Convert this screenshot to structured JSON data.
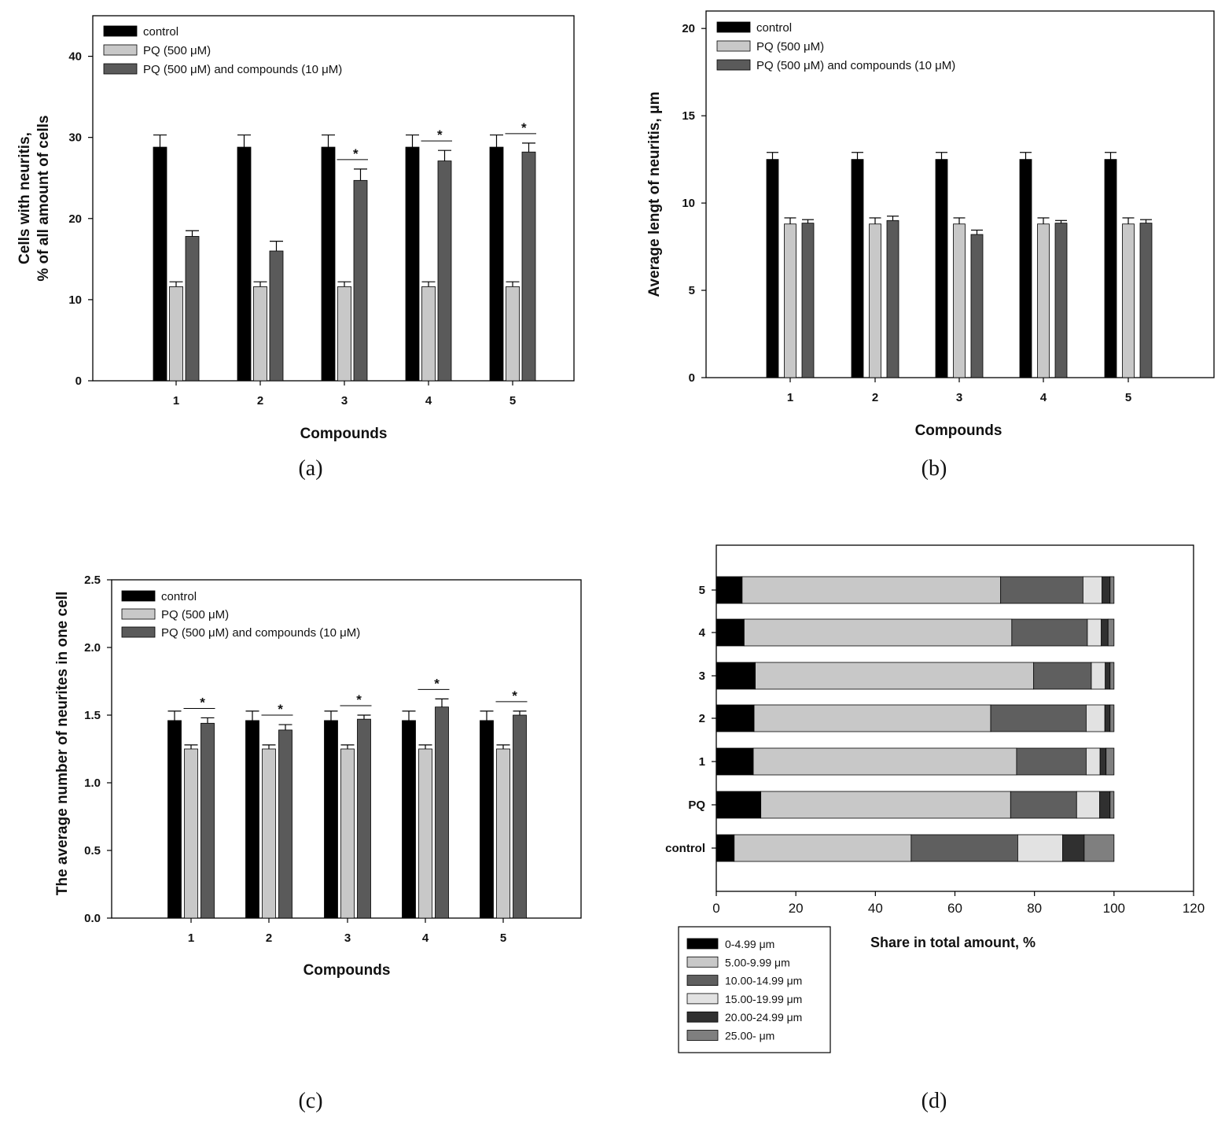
{
  "colors": {
    "control": "#000000",
    "pq": "#c8c8c8",
    "pq_compounds": "#5a5a5a",
    "ranges": [
      "#000000",
      "#c8c8c8",
      "#5f5f5f",
      "#e2e2e2",
      "#303030",
      "#7f7f7f"
    ]
  },
  "legend_bars": [
    "control",
    "PQ (500 μM)",
    "PQ (500 μM) and compounds (10 μM)"
  ],
  "chart_data": [
    {
      "id": "a",
      "type": "bar",
      "caption": "(a)",
      "xlabel": "Compounds",
      "ylabel": [
        "Cells with neuritis,",
        "% of all amount of cells"
      ],
      "categories": [
        "1",
        "2",
        "3",
        "4",
        "5"
      ],
      "ylim": [
        0,
        45
      ],
      "yticks": [
        "0",
        "10",
        "20",
        "30",
        "40"
      ],
      "series": [
        {
          "name": "control",
          "values": [
            28.8,
            28.8,
            28.8,
            28.8,
            28.8
          ],
          "errors": [
            1.5,
            1.5,
            1.5,
            1.5,
            1.5
          ]
        },
        {
          "name": "PQ (500 μM)",
          "values": [
            11.6,
            11.6,
            11.6,
            11.6,
            11.6
          ],
          "errors": [
            0.6,
            0.6,
            0.6,
            0.6,
            0.6
          ]
        },
        {
          "name": "PQ (500 μM) and compounds (10 μM)",
          "values": [
            17.8,
            16.0,
            24.7,
            27.1,
            28.2
          ],
          "errors": [
            0.7,
            1.2,
            1.4,
            1.3,
            1.1
          ]
        }
      ],
      "significance": [
        "",
        "",
        "*",
        "*",
        "*"
      ]
    },
    {
      "id": "b",
      "type": "bar",
      "caption": "(b)",
      "xlabel": "Compounds",
      "ylabel": [
        "Average lengt of neuritis, μm"
      ],
      "categories": [
        "1",
        "2",
        "3",
        "4",
        "5"
      ],
      "ylim": [
        0,
        21
      ],
      "yticks": [
        "0",
        "5",
        "10",
        "15",
        "20"
      ],
      "series": [
        {
          "name": "control",
          "values": [
            12.5,
            12.5,
            12.5,
            12.5,
            12.5
          ],
          "errors": [
            0.4,
            0.4,
            0.4,
            0.4,
            0.4
          ]
        },
        {
          "name": "PQ (500 μM)",
          "values": [
            8.8,
            8.8,
            8.8,
            8.8,
            8.8
          ],
          "errors": [
            0.35,
            0.35,
            0.35,
            0.35,
            0.35
          ]
        },
        {
          "name": "PQ (500 μM) and compounds (10 μM)",
          "values": [
            8.85,
            9.0,
            8.2,
            8.85,
            8.85
          ],
          "errors": [
            0.2,
            0.25,
            0.25,
            0.15,
            0.2
          ]
        }
      ],
      "significance": [
        "",
        "",
        "",
        "",
        ""
      ]
    },
    {
      "id": "c",
      "type": "bar",
      "caption": "(c)",
      "xlabel": "Compounds",
      "ylabel": [
        "The average number of neurites in one cell"
      ],
      "categories": [
        "1",
        "2",
        "3",
        "4",
        "5"
      ],
      "ylim": [
        0,
        2.5
      ],
      "yticks": [
        "0.0",
        "0.5",
        "1.0",
        "1.5",
        "2.0",
        "2.5"
      ],
      "series": [
        {
          "name": "control",
          "values": [
            1.46,
            1.46,
            1.46,
            1.46,
            1.46
          ],
          "errors": [
            0.07,
            0.07,
            0.07,
            0.07,
            0.07
          ]
        },
        {
          "name": "PQ (500 μM)",
          "values": [
            1.25,
            1.25,
            1.25,
            1.25,
            1.25
          ],
          "errors": [
            0.03,
            0.03,
            0.03,
            0.03,
            0.03
          ]
        },
        {
          "name": "PQ (500 μM) and compounds (10 μM)",
          "values": [
            1.44,
            1.39,
            1.47,
            1.56,
            1.5
          ],
          "errors": [
            0.04,
            0.04,
            0.03,
            0.06,
            0.03
          ]
        }
      ],
      "significance": [
        "*",
        "*",
        "*",
        "*",
        "*"
      ]
    },
    {
      "id": "d",
      "type": "bar",
      "orientation": "horizontal-stacked",
      "caption": "(d)",
      "xlabel": "Share in total amount, %",
      "xlim": [
        0,
        120
      ],
      "xticks": [
        "0",
        "20",
        "40",
        "60",
        "80",
        "100",
        "120"
      ],
      "categories": [
        "control",
        "PQ",
        "1",
        "2",
        "3",
        "4",
        "5"
      ],
      "series": [
        {
          "name": "0-4.99 μm",
          "values": [
            4.5,
            11.2,
            9.3,
            9.5,
            9.8,
            7.0,
            6.5
          ]
        },
        {
          "name": "5.00-9.99 μm",
          "values": [
            44.5,
            62.8,
            66.2,
            59.5,
            70.0,
            67.3,
            65.0
          ]
        },
        {
          "name": "10.00-14.99 μm",
          "values": [
            26.8,
            16.6,
            17.5,
            24.0,
            14.5,
            19.0,
            20.7
          ]
        },
        {
          "name": "15.00-19.99 μm",
          "values": [
            11.3,
            5.8,
            3.5,
            4.7,
            3.5,
            3.5,
            4.8
          ]
        },
        {
          "name": "20.00-24.99 μm",
          "values": [
            5.4,
            2.6,
            1.5,
            1.3,
            1.2,
            1.7,
            2.0
          ]
        },
        {
          "name": "25.00- μm",
          "values": [
            7.5,
            1.0,
            2.0,
            1.0,
            1.0,
            1.5,
            1.0
          ]
        }
      ]
    }
  ]
}
